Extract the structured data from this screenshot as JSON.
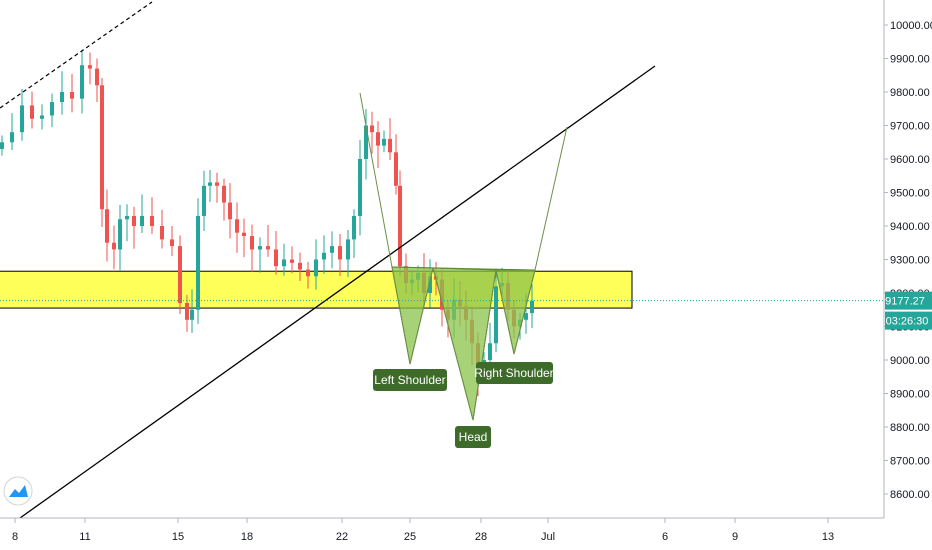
{
  "chart_data": {
    "type": "candlestick",
    "title": "",
    "xlabel": "",
    "ylabel": "",
    "ylim": [
      8540,
      10040
    ],
    "y_ticks": [
      "10000.00",
      "9900.00",
      "9800.00",
      "9700.00",
      "9600.00",
      "9500.00",
      "9400.00",
      "9300.00",
      "9200.00",
      "9100.00",
      "9000.00",
      "8900.00",
      "8800.00",
      "8700.00",
      "8600.00"
    ],
    "x_ticks": [
      "8",
      "11",
      "15",
      "18",
      "22",
      "25",
      "28",
      "Jul",
      "6",
      "9",
      "13"
    ],
    "price": {
      "label": "9177.27",
      "value": 9177.27
    },
    "countdown": "03:26:30",
    "zone": {
      "low": 9155,
      "high": 9265
    },
    "annotations": {
      "left_shoulder": {
        "label": "Left Shoulder",
        "price": 8985
      },
      "head": {
        "label": "Head",
        "price": 8820
      },
      "right_shoulder": {
        "label": "Right Shoulder",
        "price": 9010
      }
    },
    "grid": false,
    "legend": "none"
  },
  "colors": {
    "up": "#26a69a",
    "down": "#ef5350",
    "zone_fill": "#ffff3c",
    "pattern_fill": "#8bc34a",
    "label_bg": "#3e6b2a",
    "price_tag": "#26a69a",
    "trendline": "#000000"
  },
  "icons": {
    "logo": "tradingview-logo-icon"
  }
}
